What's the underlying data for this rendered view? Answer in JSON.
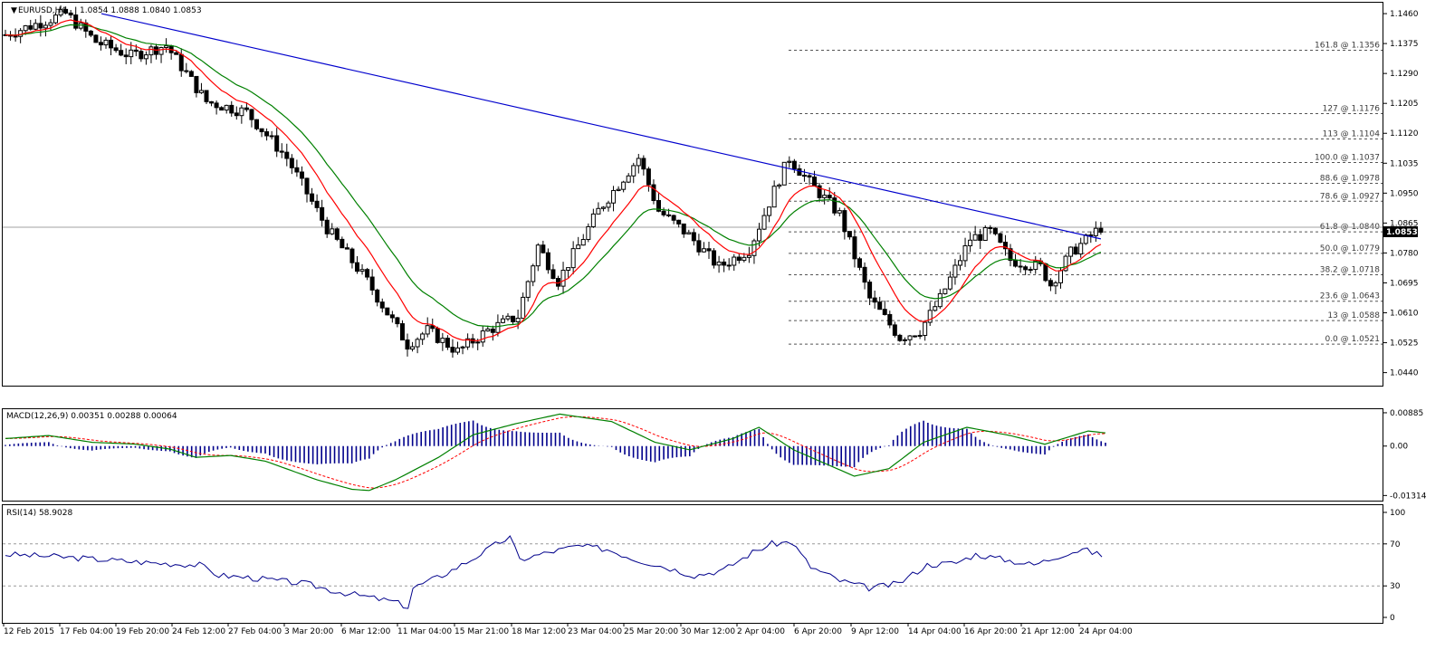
{
  "window": {
    "symbol_title": "EURUSD,H4",
    "ohlc_text": "1.0854 1.0888 1.0840 1.0853",
    "current_price_label": "1.0853"
  },
  "colors": {
    "background": "#ffffff",
    "candle": "#000000",
    "ema_fast": "#ff0000",
    "ema_slow": "#008000",
    "trendline": "#0000cd",
    "macd_hist": "#00008b",
    "macd_signal": "#ff0000",
    "macd_line": "#008000",
    "rsi": "#00008b"
  },
  "chart_data": [
    {
      "type": "candlestick",
      "title": "EURUSD,H4",
      "ylim": [
        1.0403,
        1.1491
      ],
      "y_ticks": [
        "1.1460",
        "1.1375",
        "1.1290",
        "1.1205",
        "1.1120",
        "1.1035",
        "1.0950",
        "1.0865",
        "1.0780",
        "1.0695",
        "1.0610",
        "1.0525",
        "1.0440"
      ],
      "y_tick_values": [
        1.146,
        1.1375,
        1.129,
        1.1205,
        1.112,
        1.1035,
        1.095,
        1.0865,
        1.078,
        1.0695,
        1.061,
        1.0525,
        1.044
      ],
      "x_ticks": [
        "12 Feb 2015",
        "17 Feb 04:00",
        "19 Feb 20:00",
        "24 Feb 12:00",
        "27 Feb 04:00",
        "3 Mar 20:00",
        "6 Mar 12:00",
        "11 Mar 04:00",
        "15 Mar 21:00",
        "18 Mar 12:00",
        "23 Mar 04:00",
        "25 Mar 20:00",
        "30 Mar 12:00",
        "2 Apr 04:00",
        "6 Apr 20:00",
        "9 Apr 12:00",
        "14 Apr 04:00",
        "16 Apr 20:00",
        "21 Apr 12:00",
        "24 Apr 04:00"
      ],
      "price_path": [
        [
          0,
          1.14
        ],
        [
          12,
          1.146
        ],
        [
          18,
          1.138
        ],
        [
          25,
          1.134
        ],
        [
          32,
          1.137
        ],
        [
          40,
          1.121
        ],
        [
          48,
          1.118
        ],
        [
          56,
          1.105
        ],
        [
          64,
          1.085
        ],
        [
          72,
          1.07
        ],
        [
          80,
          1.052
        ],
        [
          84,
          1.056
        ],
        [
          90,
          1.05
        ],
        [
          96,
          1.056
        ],
        [
          102,
          1.06
        ],
        [
          106,
          1.08
        ],
        [
          110,
          1.07
        ],
        [
          118,
          1.09
        ],
        [
          126,
          1.105
        ],
        [
          130,
          1.09
        ],
        [
          136,
          1.083
        ],
        [
          142,
          1.074
        ],
        [
          148,
          1.079
        ],
        [
          154,
          1.099
        ],
        [
          156,
          1.105
        ],
        [
          160,
          1.098
        ],
        [
          166,
          1.089
        ],
        [
          172,
          1.065
        ],
        [
          178,
          1.054
        ],
        [
          182,
          1.056
        ],
        [
          186,
          1.065
        ],
        [
          192,
          1.082
        ],
        [
          196,
          1.084
        ],
        [
          200,
          1.076
        ],
        [
          206,
          1.074
        ],
        [
          208,
          1.069
        ],
        [
          212,
          1.078
        ],
        [
          218,
          1.0853
        ]
      ],
      "trendline": {
        "from": [
          0,
          1.146
        ],
        "to": [
          218,
          1.082
        ]
      },
      "horizontal_line": 1.0853,
      "fibonacci": [
        {
          "label": "161.8 @ 1.1356",
          "value": 1.1356
        },
        {
          "label": "127 @ 1.1176",
          "value": 1.1176
        },
        {
          "label": "113 @ 1.1104",
          "value": 1.1104
        },
        {
          "label": "100.0 @ 1.1037",
          "value": 1.1037
        },
        {
          "label": "88.6 @ 1.0978",
          "value": 1.0978
        },
        {
          "label": "78.6 @ 1.0927",
          "value": 1.0927
        },
        {
          "label": "61.8 @ 1.0840",
          "value": 1.084
        },
        {
          "label": "50.0 @ 1.0779",
          "value": 1.0779
        },
        {
          "label": "38.2 @ 1.0718",
          "value": 1.0718
        },
        {
          "label": "23.6 @ 1.0643",
          "value": 1.0643
        },
        {
          "label": "13 @ 1.0588",
          "value": 1.0588
        },
        {
          "label": "0.0 @ 1.0521",
          "value": 1.0521
        }
      ]
    },
    {
      "type": "line",
      "title": "MACD(12,26,9) 0.00351 0.00288 0.00064",
      "ylim": [
        -0.0145,
        0.0098
      ],
      "y_ticks": [
        "0.00885",
        "0.00",
        "-0.01314"
      ],
      "y_tick_values": [
        0.00885,
        0.0,
        -0.01314
      ],
      "macd_path": [
        [
          0,
          0.002
        ],
        [
          10,
          0.0028
        ],
        [
          20,
          0.001
        ],
        [
          30,
          0.0005
        ],
        [
          38,
          -0.0008
        ],
        [
          44,
          -0.003
        ],
        [
          52,
          -0.0025
        ],
        [
          60,
          -0.004
        ],
        [
          66,
          -0.0065
        ],
        [
          72,
          -0.009
        ],
        [
          80,
          -0.0115
        ],
        [
          84,
          -0.0118
        ],
        [
          90,
          -0.009
        ],
        [
          100,
          -0.003
        ],
        [
          108,
          0.003
        ],
        [
          118,
          0.006
        ],
        [
          128,
          0.0085
        ],
        [
          140,
          0.0065
        ],
        [
          150,
          0.001
        ],
        [
          158,
          -0.001
        ],
        [
          168,
          0.002
        ],
        [
          174,
          0.005
        ],
        [
          182,
          -0.001
        ],
        [
          190,
          -0.005
        ],
        [
          196,
          -0.008
        ],
        [
          204,
          -0.006
        ],
        [
          212,
          0.001
        ],
        [
          222,
          0.005
        ],
        [
          232,
          0.0028
        ],
        [
          240,
          0.0005
        ],
        [
          250,
          0.004
        ],
        [
          254,
          0.0035
        ]
      ]
    },
    {
      "type": "line",
      "title": "RSI(14) 58.9028",
      "ylim": [
        0,
        100
      ],
      "y_ticks": [
        "100",
        "70",
        "30",
        "0"
      ],
      "y_tick_values": [
        100,
        70,
        30,
        0
      ],
      "levels": [
        70,
        30
      ],
      "rsi_path": [
        [
          0,
          60
        ],
        [
          10,
          58
        ],
        [
          20,
          55
        ],
        [
          30,
          52
        ],
        [
          40,
          50
        ],
        [
          44,
          40
        ],
        [
          50,
          38
        ],
        [
          56,
          35
        ],
        [
          62,
          32
        ],
        [
          68,
          25
        ],
        [
          74,
          20
        ],
        [
          80,
          15
        ],
        [
          83,
          10
        ],
        [
          84,
          28
        ],
        [
          90,
          40
        ],
        [
          96,
          55
        ],
        [
          102,
          72
        ],
        [
          104,
          76
        ],
        [
          106,
          55
        ],
        [
          112,
          62
        ],
        [
          118,
          68
        ],
        [
          124,
          65
        ],
        [
          130,
          55
        ],
        [
          136,
          48
        ],
        [
          142,
          40
        ],
        [
          148,
          45
        ],
        [
          154,
          62
        ],
        [
          158,
          70
        ],
        [
          162,
          72
        ],
        [
          166,
          48
        ],
        [
          172,
          35
        ],
        [
          178,
          28
        ],
        [
          184,
          32
        ],
        [
          190,
          50
        ],
        [
          196,
          52
        ],
        [
          200,
          60
        ],
        [
          206,
          55
        ],
        [
          212,
          50
        ],
        [
          218,
          60
        ],
        [
          222,
          65
        ],
        [
          226,
          58.9
        ]
      ]
    }
  ]
}
